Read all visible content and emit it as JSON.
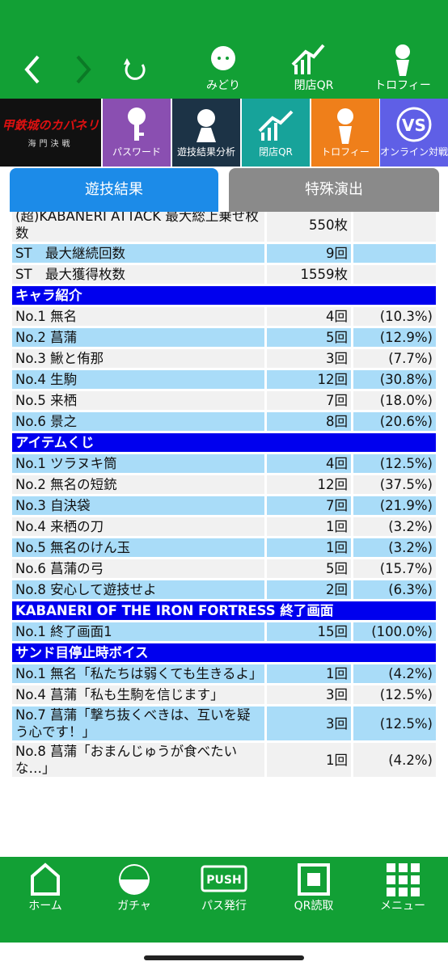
{
  "header": {
    "nav_labels": [
      "みどり",
      "閉店QR",
      "トロフィー"
    ]
  },
  "menu": {
    "logo": [
      "甲鉄城のカバネリ",
      "海門決戦"
    ],
    "tiles": [
      "パスワード",
      "遊技結果分析",
      "閉店QR",
      "トロフィー",
      "オンライン対戦"
    ]
  },
  "tabs": [
    "遊技結果",
    "特殊演出"
  ],
  "table": {
    "rows": [
      {
        "cells": [
          "(超)KABANERI ATTACK 最大総上乗せ枚数",
          "550枚"
        ],
        "highlight": false
      },
      {
        "cells": [
          "ST　最大継続回数",
          "9回"
        ],
        "highlight": true
      },
      {
        "cells": [
          "ST　最大獲得枚数",
          "1559枚"
        ],
        "highlight": false
      },
      {
        "section": "キャラ紹介"
      },
      {
        "cells": [
          "No.1 無名",
          "4回",
          "(10.3%)"
        ],
        "highlight": false
      },
      {
        "cells": [
          "No.2 菖蒲",
          "5回",
          "(12.9%)"
        ],
        "highlight": true
      },
      {
        "cells": [
          "No.3 鰍と侑那",
          "3回",
          "(7.7%)"
        ],
        "highlight": false
      },
      {
        "cells": [
          "No.4 生駒",
          "12回",
          "(30.8%)"
        ],
        "highlight": true
      },
      {
        "cells": [
          "No.5 来栖",
          "7回",
          "(18.0%)"
        ],
        "highlight": false
      },
      {
        "cells": [
          "No.6 景之",
          "8回",
          "(20.6%)"
        ],
        "highlight": true
      },
      {
        "section": "アイテムくじ"
      },
      {
        "cells": [
          "No.1 ツラヌキ筒",
          "4回",
          "(12.5%)"
        ],
        "highlight": true
      },
      {
        "cells": [
          "No.2 無名の短銃",
          "12回",
          "(37.5%)"
        ],
        "highlight": false
      },
      {
        "cells": [
          "No.3 自決袋",
          "7回",
          "(21.9%)"
        ],
        "highlight": true
      },
      {
        "cells": [
          "No.4 来栖の刀",
          "1回",
          "(3.2%)"
        ],
        "highlight": false
      },
      {
        "cells": [
          "No.5 無名のけん玉",
          "1回",
          "(3.2%)"
        ],
        "highlight": true
      },
      {
        "cells": [
          "No.6 菖蒲の弓",
          "5回",
          "(15.7%)"
        ],
        "highlight": false
      },
      {
        "cells": [
          "No.8 安心して遊技せよ",
          "2回",
          "(6.3%)"
        ],
        "highlight": true
      },
      {
        "section": "KABANERI OF THE IRON FORTRESS 終了画面"
      },
      {
        "cells": [
          "No.1 終了画面1",
          "15回",
          "(100.0%)"
        ],
        "highlight": true
      },
      {
        "section": "サンド目停止時ボイス"
      },
      {
        "cells": [
          "No.1 無名「私たちは弱くても生きるよ」",
          "1回",
          "(4.2%)"
        ],
        "highlight": true
      },
      {
        "cells": [
          "No.4 菖蒲「私も生駒を信じます」",
          "3回",
          "(12.5%)"
        ],
        "highlight": false
      },
      {
        "cells": [
          "No.7 菖蒲「撃ち抜くべきは、互いを疑う心です！」",
          "3回",
          "(12.5%)"
        ],
        "highlight": true
      },
      {
        "cells": [
          "No.8 菖蒲「おまんじゅうが食べたいな…」",
          "1回",
          "(4.2%)"
        ],
        "highlight": false
      }
    ]
  },
  "bottom_nav": [
    "ホーム",
    "ガチャ",
    "パス発行",
    "QR読取",
    "メニュー"
  ]
}
